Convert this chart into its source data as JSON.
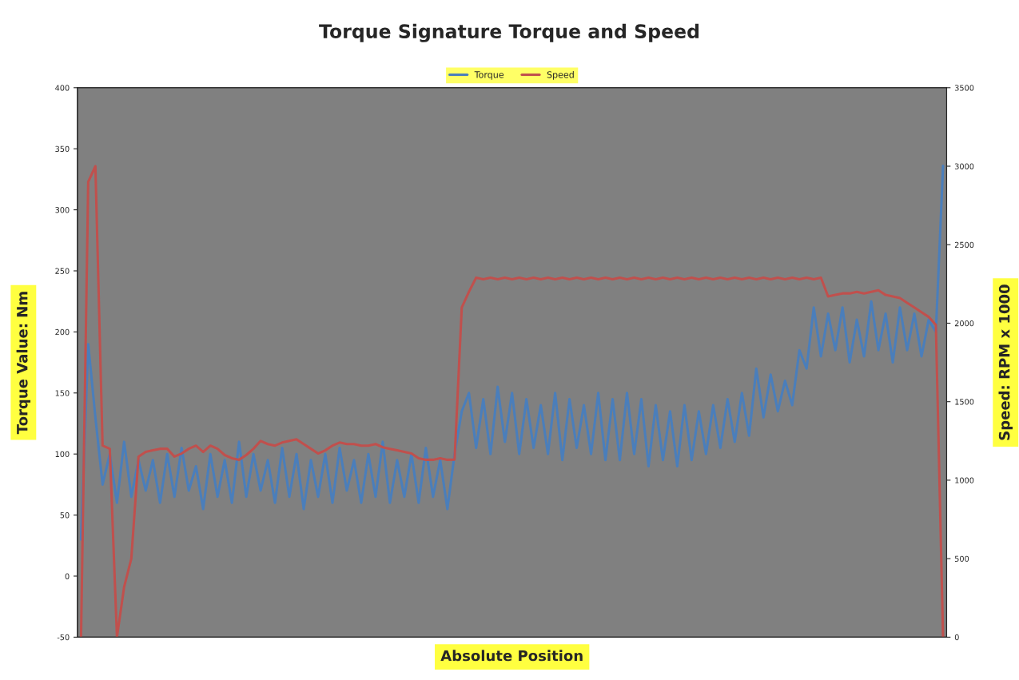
{
  "chart_data": {
    "type": "line",
    "title": "Torque Signature Torque and Speed",
    "xlabel": "Absolute Position",
    "ylabel": "Torque Value: Nm",
    "y2label": "Speed: RPM x 1000",
    "categories": [
      null,
      null,
      null,
      null,
      null,
      null,
      null,
      null,
      null,
      null,
      null,
      null,
      null,
      null,
      null,
      null,
      null,
      null,
      null,
      null,
      null,
      null,
      null,
      null,
      null,
      null,
      null,
      null,
      null,
      null,
      null,
      null,
      null,
      null,
      null,
      null,
      null,
      null,
      null,
      null,
      null,
      null,
      null,
      null,
      null,
      null,
      null,
      null,
      null,
      null,
      null,
      null,
      null,
      null,
      null,
      null,
      null,
      null,
      null,
      null,
      null,
      null,
      null,
      null,
      null,
      null,
      null,
      null,
      null,
      null,
      null,
      null,
      null,
      null,
      null,
      null,
      null,
      null,
      null,
      null,
      null,
      null,
      null,
      null,
      null,
      null,
      null,
      null,
      null,
      null,
      null,
      null,
      null,
      null,
      null,
      null,
      null,
      null,
      null,
      null,
      null,
      null,
      null,
      null,
      null,
      null,
      null,
      null,
      null,
      null,
      null,
      null,
      null,
      null,
      null,
      null,
      null,
      null,
      null,
      null,
      null
    ],
    "series": [
      {
        "name": "Torque",
        "color": "#4a7ebb",
        "values": [
          30,
          190,
          130,
          75,
          100,
          60,
          110,
          65,
          95,
          70,
          95,
          60,
          100,
          65,
          105,
          70,
          90,
          55,
          100,
          65,
          95,
          60,
          110,
          65,
          100,
          70,
          95,
          60,
          105,
          65,
          100,
          55,
          95,
          65,
          100,
          60,
          105,
          70,
          95,
          60,
          100,
          65,
          110,
          60,
          95,
          65,
          100,
          60,
          105,
          65,
          95,
          55,
          100,
          135,
          150,
          105,
          145,
          100,
          155,
          110,
          150,
          100,
          145,
          105,
          140,
          100,
          150,
          95,
          145,
          105,
          140,
          100,
          150,
          95,
          145,
          95,
          150,
          100,
          145,
          90,
          140,
          95,
          135,
          90,
          140,
          95,
          135,
          100,
          140,
          105,
          145,
          110,
          150,
          115,
          170,
          130,
          165,
          135,
          160,
          140,
          185,
          170,
          220,
          180,
          215,
          185,
          220,
          175,
          210,
          180,
          225,
          185,
          215,
          175,
          220,
          185,
          215,
          180,
          210,
          200,
          336
        ]
      },
      {
        "name": "Speed",
        "color": "#c0504d",
        "axis": "y2",
        "values": [
          0,
          2900,
          3000,
          1220,
          1200,
          0,
          320,
          500,
          1150,
          1180,
          1190,
          1200,
          1200,
          1150,
          1170,
          1200,
          1220,
          1180,
          1220,
          1200,
          1160,
          1140,
          1130,
          1160,
          1200,
          1250,
          1230,
          1220,
          1240,
          1250,
          1260,
          1230,
          1200,
          1170,
          1190,
          1220,
          1240,
          1230,
          1230,
          1220,
          1220,
          1230,
          1210,
          1200,
          1190,
          1180,
          1170,
          1140,
          1130,
          1130,
          1140,
          1130,
          1131,
          2100,
          2200,
          2290,
          2280,
          2290,
          2280,
          2290,
          2280,
          2290,
          2280,
          2290,
          2280,
          2290,
          2280,
          2290,
          2280,
          2290,
          2280,
          2290,
          2280,
          2290,
          2280,
          2290,
          2280,
          2290,
          2280,
          2290,
          2280,
          2290,
          2280,
          2290,
          2280,
          2290,
          2280,
          2290,
          2280,
          2290,
          2280,
          2290,
          2280,
          2290,
          2280,
          2290,
          2280,
          2290,
          2280,
          2290,
          2280,
          2290,
          2280,
          2290,
          2170,
          2180,
          2190,
          2190,
          2200,
          2190,
          2200,
          2210,
          2180,
          2170,
          2160,
          2130,
          2100,
          2070,
          2040,
          1990,
          0
        ]
      }
    ],
    "ylim": [
      -50,
      400
    ],
    "yticks": [
      -50,
      0,
      50,
      100,
      150,
      200,
      250,
      300,
      350,
      400
    ],
    "y2lim": [
      0,
      3500
    ],
    "y2ticks": [
      0,
      500,
      1000,
      1500,
      2000,
      2500,
      3000,
      3500
    ],
    "legend": "top",
    "grid": false,
    "marker": "none",
    "line_style": "solid"
  }
}
